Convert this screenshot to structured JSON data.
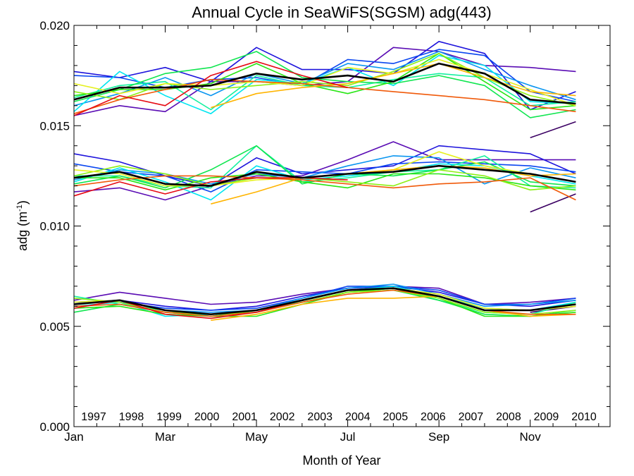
{
  "chart_data": {
    "type": "line",
    "title": "Annual Cycle in SeaWiFS(SGSM) adg(443)",
    "xlabel": "Month of Year",
    "ylabel_base": "adg (m",
    "ylabel_sup": "-1",
    "ylabel_close": ")",
    "xlim": [
      1,
      12.75
    ],
    "ylim": [
      0.0,
      0.02
    ],
    "x_ticks": [
      {
        "value": 1,
        "label": "Jan"
      },
      {
        "value": 3,
        "label": "Mar"
      },
      {
        "value": 5,
        "label": "May"
      },
      {
        "value": 7,
        "label": "Jul"
      },
      {
        "value": 9,
        "label": "Sep"
      },
      {
        "value": 11,
        "label": "Nov"
      }
    ],
    "y_ticks": [
      {
        "value": 0.0,
        "label": "0.000"
      },
      {
        "value": 0.005,
        "label": "0.005"
      },
      {
        "value": 0.01,
        "label": "0.010"
      },
      {
        "value": 0.015,
        "label": "0.015"
      },
      {
        "value": 0.02,
        "label": "0.020"
      }
    ],
    "x": [
      1,
      2,
      3,
      4,
      5,
      6,
      7,
      8,
      9,
      10,
      11,
      12
    ],
    "grid": false,
    "legend_position": "bottom, inside plot",
    "climatology": {
      "color": "#000000",
      "groups": [
        [
          0.0163,
          0.0169,
          0.0169,
          0.017,
          0.0176,
          0.0173,
          0.0175,
          0.0172,
          0.0181,
          0.0176,
          0.0163,
          0.0161
        ],
        [
          0.0124,
          0.0127,
          0.0121,
          0.012,
          0.0127,
          0.0124,
          0.0126,
          0.0127,
          0.013,
          0.0128,
          0.0126,
          0.0122
        ],
        [
          0.0061,
          0.0063,
          0.0058,
          0.0056,
          0.0058,
          0.0063,
          0.0068,
          0.0069,
          0.0065,
          0.0058,
          0.0058,
          0.0061
        ]
      ]
    },
    "series": [
      {
        "name": "1997",
        "color": "#3b0063",
        "groups": [
          [
            null,
            null,
            null,
            null,
            null,
            null,
            null,
            null,
            null,
            null,
            0.0144,
            0.0152
          ],
          [
            null,
            null,
            null,
            null,
            null,
            null,
            null,
            null,
            null,
            null,
            0.0107,
            0.0116
          ],
          [
            null,
            null,
            null,
            null,
            null,
            null,
            null,
            null,
            null,
            null,
            0.0057,
            0.006
          ]
        ]
      },
      {
        "name": "1998",
        "color": "#5a0cb4",
        "groups": [
          [
            0.0155,
            0.016,
            0.0157,
            0.0172,
            0.0172,
            0.017,
            0.0172,
            0.0189,
            0.0187,
            0.018,
            0.0179,
            0.0177
          ],
          [
            0.0117,
            0.0119,
            0.0113,
            0.012,
            0.0125,
            0.0125,
            0.0133,
            0.0142,
            0.0133,
            0.0133,
            0.0133,
            0.0133
          ],
          [
            0.0063,
            0.0067,
            0.0064,
            0.0061,
            0.0062,
            0.0066,
            0.0069,
            0.007,
            0.0069,
            0.0061,
            0.0062,
            0.0064
          ]
        ]
      },
      {
        "name": "1999",
        "color": "#1e14dc",
        "groups": [
          [
            0.0177,
            0.0174,
            0.0179,
            0.0172,
            0.0189,
            0.0178,
            0.0178,
            0.0176,
            0.0192,
            0.0186,
            0.0158,
            0.0167
          ]
        ],
        "groups_b": [],
        "mid": [
          0.0136,
          0.0132,
          0.0125,
          0.012,
          0.0134,
          0.0126,
          0.0128,
          0.013,
          0.014,
          0.0138,
          0.0136,
          0.0126
        ],
        "low": [
          0.0062,
          0.0063,
          0.006,
          0.0058,
          0.006,
          0.0065,
          0.0069,
          0.007,
          0.0067,
          0.0061,
          0.006,
          0.0063
        ]
      },
      {
        "name": "2000",
        "color": "#0a46f0",
        "groups": [
          [
            0.0175,
            0.0174,
            0.0169,
            0.0173,
            0.0174,
            0.017,
            0.0183,
            0.0181,
            0.0188,
            0.0185,
            0.0167,
            0.0162
          ],
          [
            0.0131,
            0.0127,
            0.0125,
            0.0117,
            0.0128,
            0.0127,
            0.0126,
            0.0131,
            0.0132,
            0.0131,
            0.013,
            0.0127
          ],
          [
            0.0062,
            0.0062,
            0.0059,
            0.0058,
            0.0059,
            0.0064,
            0.007,
            0.007,
            0.0068,
            0.0061,
            0.0061,
            0.0064
          ]
        ]
      },
      {
        "name": "2001",
        "color": "#0a96f0",
        "groups": [
          [
            0.016,
            0.0166,
            0.0174,
            0.0165,
            0.0176,
            0.0171,
            0.0181,
            0.0178,
            0.0187,
            0.0178,
            0.017,
            0.0163
          ],
          [
            0.0123,
            0.0128,
            0.0126,
            0.0121,
            0.0126,
            0.0124,
            0.013,
            0.0135,
            0.0134,
            0.0121,
            0.0129,
            0.0124
          ],
          [
            0.0061,
            0.0063,
            0.0058,
            0.0057,
            0.0058,
            0.0064,
            0.0069,
            0.0071,
            0.0066,
            0.006,
            0.0061,
            0.0063
          ]
        ]
      },
      {
        "name": "2002",
        "color": "#00e6f0",
        "groups": [
          [
            0.0157,
            0.0177,
            0.0165,
            0.0156,
            0.0173,
            0.0171,
            0.0179,
            0.017,
            0.0185,
            0.018,
            0.0162,
            0.0161
          ],
          [
            0.0122,
            0.0129,
            0.0122,
            0.0113,
            0.013,
            0.0123,
            0.0125,
            0.0127,
            0.0131,
            0.013,
            0.0125,
            0.0121
          ],
          [
            0.006,
            0.0062,
            0.0055,
            0.0056,
            0.0057,
            0.0063,
            0.0068,
            0.007,
            0.0065,
            0.0059,
            0.0058,
            0.0062
          ]
        ]
      },
      {
        "name": "2003",
        "color": "#14f0a0",
        "groups": [
          [
            0.0164,
            0.017,
            0.0172,
            0.0158,
            0.0175,
            0.017,
            0.0169,
            0.0173,
            0.0176,
            0.0174,
            0.016,
            0.0162
          ],
          [
            0.0125,
            0.0125,
            0.012,
            0.0119,
            0.014,
            0.0122,
            0.0124,
            0.0127,
            0.0128,
            0.0135,
            0.012,
            0.0119
          ],
          [
            0.0065,
            0.0061,
            0.0058,
            0.0055,
            0.0058,
            0.0062,
            0.0067,
            0.0069,
            0.0063,
            0.0057,
            0.0056,
            0.0062
          ]
        ]
      },
      {
        "name": "2004",
        "color": "#10e650",
        "groups": [
          [
            0.0162,
            0.0168,
            0.0176,
            0.0179,
            0.0187,
            0.0174,
            0.0172,
            0.0171,
            0.0175,
            0.017,
            0.0154,
            0.0158
          ],
          [
            0.0121,
            0.0125,
            0.0119,
            0.0128,
            0.014,
            0.0121,
            0.0126,
            0.0125,
            0.0128,
            0.0132,
            0.0122,
            0.012
          ],
          [
            0.0057,
            0.0061,
            0.0057,
            0.0055,
            0.0058,
            0.0062,
            0.0067,
            0.0068,
            0.0063,
            0.0056,
            0.0055,
            0.0058
          ]
        ]
      },
      {
        "name": "2005",
        "color": "#28e614",
        "groups": [
          [
            0.0165,
            0.0168,
            0.0168,
            0.0171,
            0.0181,
            0.0171,
            0.0166,
            0.0172,
            0.0186,
            0.0172,
            0.0158,
            0.016
          ],
          [
            0.0124,
            0.0124,
            0.0118,
            0.0124,
            0.0126,
            0.0122,
            0.0119,
            0.0126,
            0.0126,
            0.0124,
            0.012,
            0.0118
          ],
          [
            0.0059,
            0.006,
            0.0056,
            0.0055,
            0.0055,
            0.0061,
            0.0067,
            0.0069,
            0.0064,
            0.0055,
            0.0055,
            0.0057
          ]
        ]
      },
      {
        "name": "2006",
        "color": "#8cf014",
        "groups": [
          [
            0.0167,
            0.0163,
            0.0171,
            0.0168,
            0.017,
            0.0172,
            0.017,
            0.0177,
            0.0186,
            0.0174,
            0.0165,
            0.016
          ],
          [
            0.0125,
            0.013,
            0.0126,
            0.012,
            0.0124,
            0.0124,
            0.0122,
            0.012,
            0.0128,
            0.0125,
            0.0118,
            0.012
          ],
          [
            0.0064,
            0.0062,
            0.0057,
            0.0056,
            0.0057,
            0.0062,
            0.0067,
            0.0068,
            0.0064,
            0.0057,
            0.0056,
            0.0058
          ]
        ]
      },
      {
        "name": "2007",
        "color": "#e6f01e",
        "groups": [
          [
            0.0171,
            0.0166,
            0.0171,
            0.017,
            0.0172,
            0.017,
            0.0179,
            0.0176,
            0.0183,
            0.0176,
            0.0168,
            0.016
          ],
          [
            0.0128,
            0.0126,
            0.012,
            0.012,
            0.0123,
            0.0124,
            0.0126,
            0.0128,
            0.0137,
            0.013,
            0.0126,
            0.0122
          ],
          [
            0.0062,
            0.0063,
            0.0058,
            0.0056,
            0.0058,
            0.0063,
            0.0068,
            0.0069,
            0.0066,
            0.0059,
            0.0058,
            0.006
          ]
        ]
      },
      {
        "name": "2008",
        "color": "#ffb400",
        "groups": [
          [
            null,
            null,
            null,
            0.0159,
            0.0166,
            0.0169,
            0.0171,
            0.0176,
            0.0181,
            0.0174,
            0.0167,
            0.0165
          ],
          [
            null,
            null,
            null,
            0.0111,
            0.0117,
            0.0124,
            0.0126,
            0.0128,
            0.013,
            0.0129,
            0.0125,
            0.0126
          ],
          [
            null,
            null,
            null,
            0.0053,
            0.0056,
            0.0061,
            0.0064,
            0.0064,
            0.0065,
            0.0058,
            0.0055,
            0.0056
          ]
        ]
      },
      {
        "name": "2009",
        "color": "#f05a0a",
        "groups": [
          [
            0.0156,
            0.0163,
            0.0168,
            0.0173,
            0.0172,
            0.0171,
            0.0169,
            0.0167,
            0.0165,
            0.0163,
            0.016,
            0.0157
          ],
          [
            0.012,
            0.0123,
            0.0125,
            0.0125,
            0.0124,
            0.0123,
            0.0121,
            0.0119,
            0.0121,
            0.0122,
            0.0124,
            0.0113
          ],
          [
            0.006,
            0.0061,
            0.0057,
            0.0055,
            0.0057,
            0.0062,
            0.0066,
            0.0068,
            0.0065,
            0.0058,
            0.0056,
            0.0056
          ]
        ]
      },
      {
        "name": "2010",
        "color": "#e60a14",
        "groups": [
          [
            0.0155,
            0.0165,
            0.016,
            0.0175,
            0.0182,
            0.0175,
            0.0169,
            null,
            null,
            null,
            null,
            null
          ],
          [
            0.0115,
            0.0122,
            0.0116,
            0.0122,
            0.0124,
            0.0124,
            0.0123,
            null,
            null,
            null,
            null,
            null
          ],
          [
            0.0059,
            0.0063,
            0.0056,
            0.0054,
            0.0057,
            0.0063,
            0.0068,
            null,
            null,
            null,
            null,
            null
          ]
        ]
      }
    ]
  }
}
